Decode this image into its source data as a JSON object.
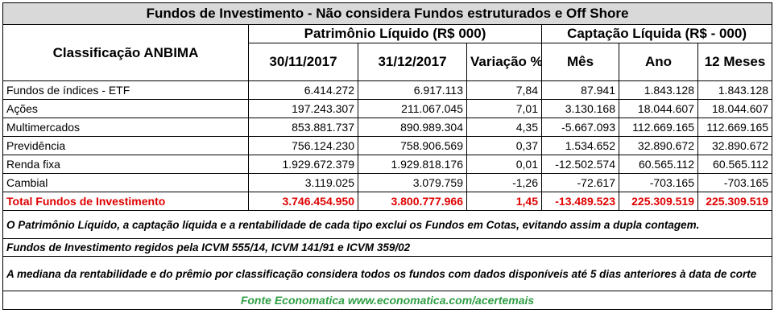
{
  "title": "Fundos de Investimento - Não considera Fundos estruturados e Off Shore",
  "header": {
    "classificacao": "Classificação ANBIMA",
    "patrimonio_group": "Patrimônio Líquido (R$ 000)",
    "captacao_group": "Captação Líquida (R$ - 000)",
    "col_pl_nov": "30/11/2017",
    "col_pl_dec": "31/12/2017",
    "col_variacao": "Variação %",
    "col_mes": "Mês",
    "col_ano": "Ano",
    "col_12m": "12 Meses"
  },
  "rows": [
    {
      "name": "Fundos de índices - ETF",
      "pl_nov": "6.414.272",
      "pl_dec": "6.917.113",
      "variacao": "7,84",
      "mes": "87.941",
      "ano": "1.843.128",
      "m12": "1.843.128"
    },
    {
      "name": "Ações",
      "pl_nov": "197.243.307",
      "pl_dec": "211.067.045",
      "variacao": "7,01",
      "mes": "3.130.168",
      "ano": "18.044.607",
      "m12": "18.044.607"
    },
    {
      "name": "Multimercados",
      "pl_nov": "853.881.737",
      "pl_dec": "890.989.304",
      "variacao": "4,35",
      "mes": "-5.667.093",
      "ano": "112.669.165",
      "m12": "112.669.165"
    },
    {
      "name": "Previdência",
      "pl_nov": "756.124.230",
      "pl_dec": "758.906.569",
      "variacao": "0,37",
      "mes": "1.534.652",
      "ano": "32.890.672",
      "m12": "32.890.672"
    },
    {
      "name": "Renda fixa",
      "pl_nov": "1.929.672.379",
      "pl_dec": "1.929.818.176",
      "variacao": "0,01",
      "mes": "-12.502.574",
      "ano": "60.565.112",
      "m12": "60.565.112"
    },
    {
      "name": "Cambial",
      "pl_nov": "3.119.025",
      "pl_dec": "3.079.759",
      "variacao": "-1,26",
      "mes": "-72.617",
      "ano": "-703.165",
      "m12": "-703.165"
    }
  ],
  "total": {
    "name": "Total Fundos de Investimento",
    "pl_nov": "3.746.454.950",
    "pl_dec": "3.800.777.966",
    "variacao": "1,45",
    "mes": "-13.489.523",
    "ano": "225.309.519",
    "m12": "225.309.519"
  },
  "notes": {
    "n1": "O Patrimônio Líquido, a captação líquida e a rentabilidade de cada tipo exclui os Fundos em Cotas, evitando assim a dupla contagem.",
    "n2": "Fundos de Investimento regidos pela ICVM 555/14, ICVM 141/91 e ICVM 359/02",
    "n3": "A mediana da rentabilidade  e do prêmio por classificação considera todos os fundos com dados disponíveis até 5 dias anteriores à data de corte"
  },
  "source": "Fonte Economatica www.economatica.com/acertemais",
  "colors": {
    "total_text": "#e00000",
    "source_text": "#2e9e44",
    "title_bg": "#d9d9d9"
  }
}
